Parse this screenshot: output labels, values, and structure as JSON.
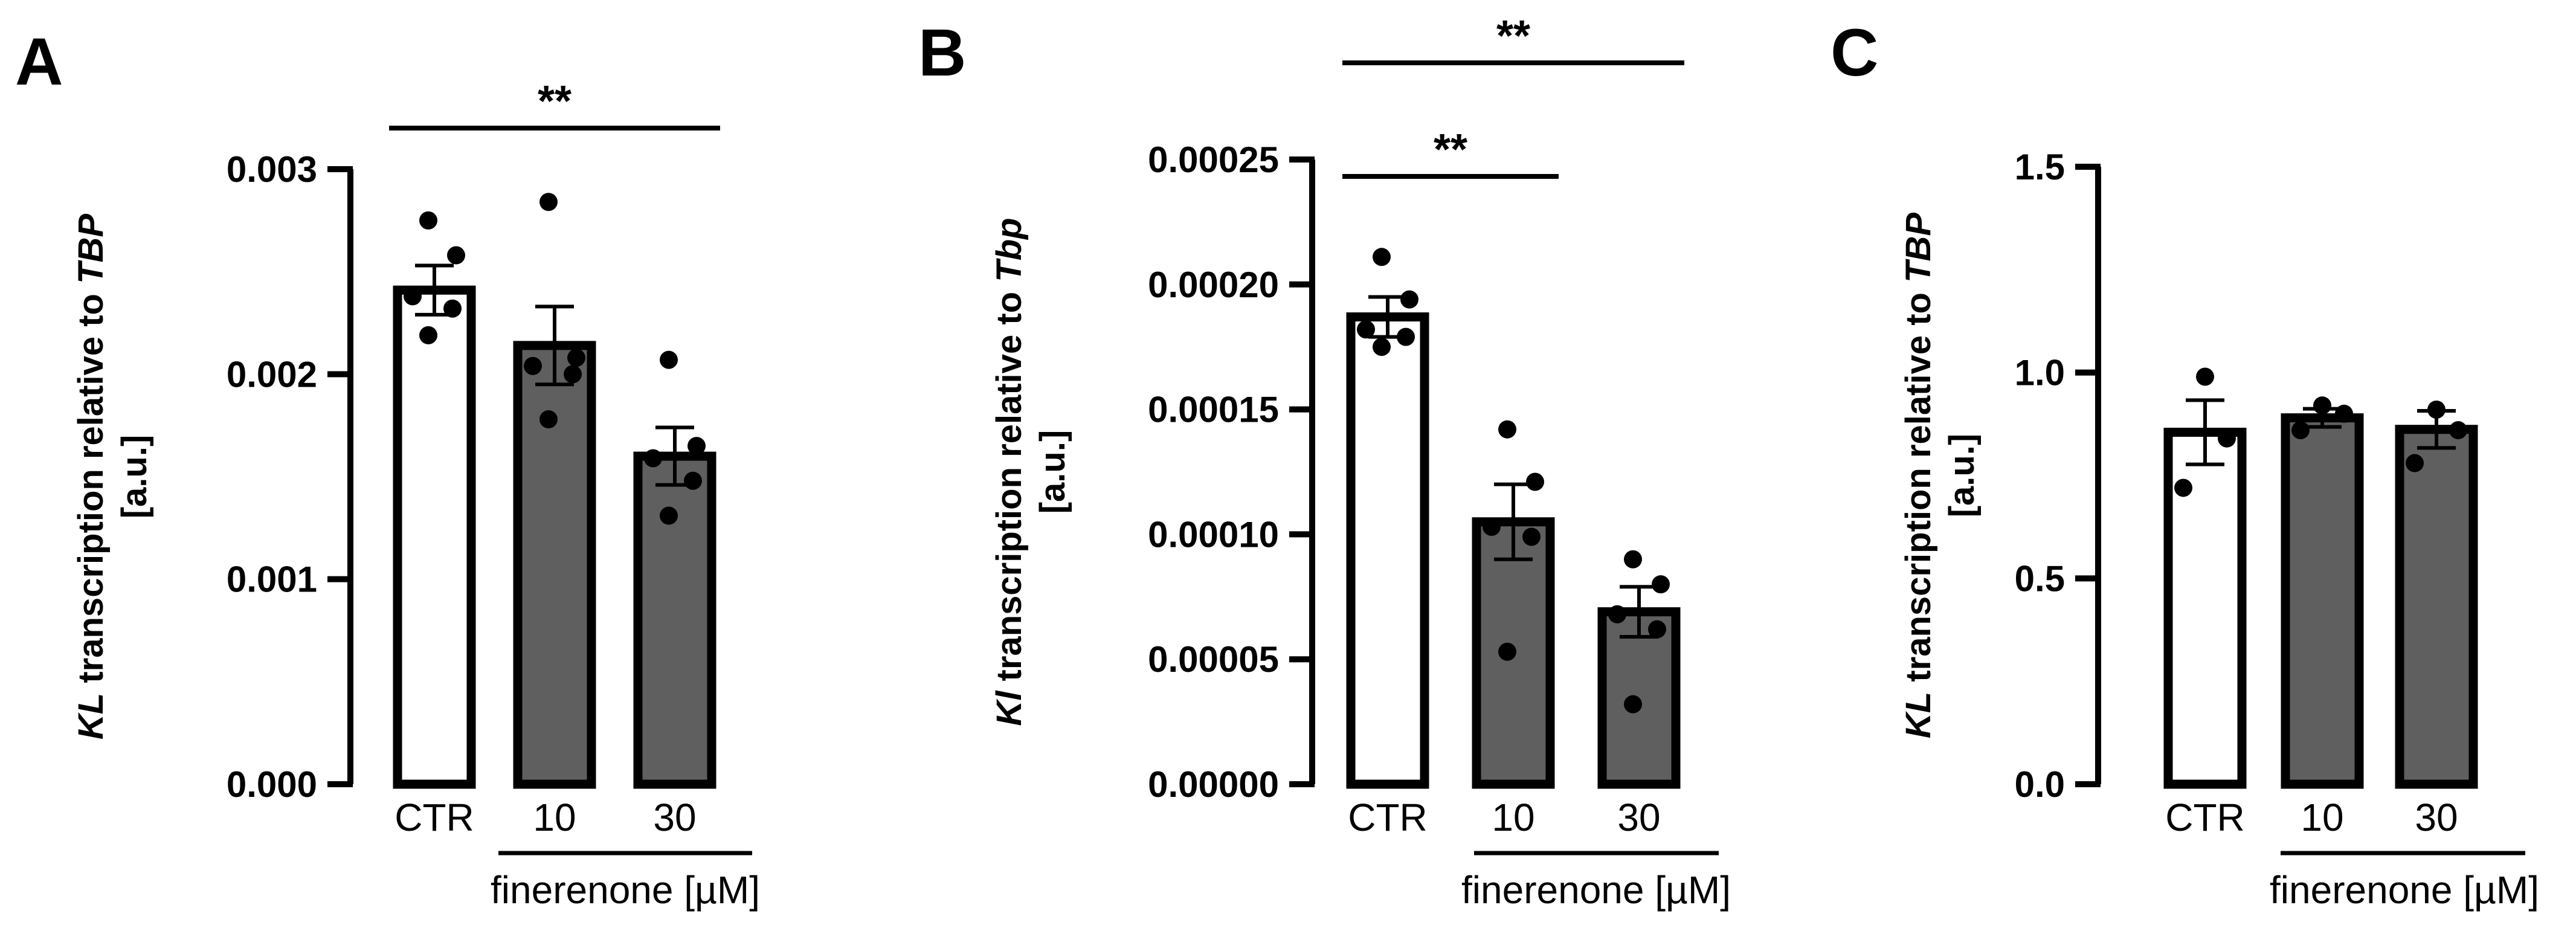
{
  "colors": {
    "control_fill": "#ffffff",
    "treated_fill": "#5f5f5f",
    "stroke": "#000000",
    "point": "#000000"
  },
  "chart_data": [
    {
      "type": "bar",
      "panel": "A",
      "categories": [
        "CTR",
        "10",
        "30"
      ],
      "group_label": "finerenone [µM]",
      "ylabel_gene": "KL",
      "ylabel_text": " transcription relative to ",
      "ylabel_ref": "TBP",
      "ylabel_unit": "[a.u.]",
      "ylim": [
        0,
        0.003
      ],
      "yticks": [
        0,
        0.001,
        0.002,
        0.003
      ],
      "ytick_labels": [
        "0.000",
        "0.001",
        "0.002",
        "0.003"
      ],
      "means": [
        0.00241,
        0.00214,
        0.0016
      ],
      "sem": [
        0.00012,
        0.00019,
        0.00014
      ],
      "points": [
        [
          0.00275,
          0.00258,
          0.00238,
          0.00232,
          0.00219
        ],
        [
          0.00284,
          0.00208,
          0.00204,
          0.002,
          0.00178
        ],
        [
          0.00207,
          0.00165,
          0.00159,
          0.00148,
          0.00131
        ]
      ],
      "significance": [
        {
          "from": 0,
          "to": 2,
          "label": "**"
        }
      ]
    },
    {
      "type": "bar",
      "panel": "B",
      "categories": [
        "CTR",
        "10",
        "30"
      ],
      "group_label": "finerenone [µM]",
      "ylabel_gene": "Kl",
      "ylabel_text": " transcription relative to ",
      "ylabel_ref": "Tbp",
      "ylabel_unit": "[a.u.]",
      "ylim": [
        0,
        0.00025
      ],
      "yticks": [
        0,
        5e-05,
        0.0001,
        0.00015,
        0.0002,
        0.00025
      ],
      "ytick_labels": [
        "0.00000",
        "0.00005",
        "0.00010",
        "0.00015",
        "0.00020",
        "0.00025"
      ],
      "means": [
        0.000187,
        0.000105,
        6.9e-05
      ],
      "sem": [
        8e-06,
        1.5e-05,
        1e-05
      ],
      "points": [
        [
          0.000211,
          0.000194,
          0.000182,
          0.000179,
          0.000175
        ],
        [
          0.000142,
          0.000121,
          0.000103,
          9.9e-05,
          5.3e-05
        ],
        [
          9e-05,
          8e-05,
          6.8e-05,
          6.2e-05,
          3.2e-05
        ]
      ],
      "significance": [
        {
          "from": 0,
          "to": 1,
          "label": "**"
        },
        {
          "from": 0,
          "to": 2,
          "label": "**"
        }
      ]
    },
    {
      "type": "bar",
      "panel": "C",
      "categories": [
        "CTR",
        "10",
        "30"
      ],
      "group_label": "finerenone [µM]",
      "ylabel_gene": "KL",
      "ylabel_text": " transcription relative to ",
      "ylabel_ref": "TBP",
      "ylabel_unit": "[a.u.]",
      "ylim": [
        0,
        1.5
      ],
      "yticks": [
        0,
        0.5,
        1.0,
        1.5
      ],
      "ytick_labels": [
        "0.0",
        "0.5",
        "1.0",
        "1.5"
      ],
      "means": [
        0.855,
        0.89,
        0.862
      ],
      "sem": [
        0.078,
        0.022,
        0.045
      ],
      "points": [
        [
          0.99,
          0.84,
          0.72
        ],
        [
          0.92,
          0.9,
          0.86
        ],
        [
          0.91,
          0.86,
          0.78
        ]
      ],
      "significance": []
    }
  ]
}
